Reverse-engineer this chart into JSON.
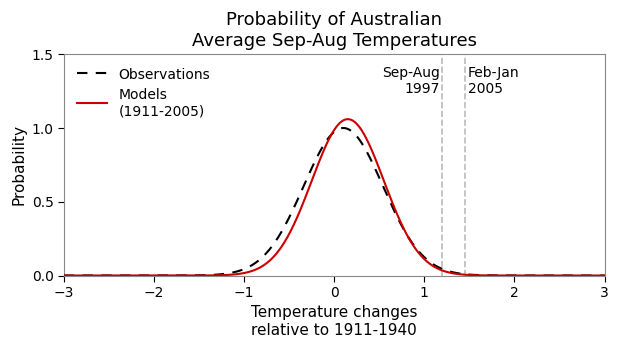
{
  "title_line1": "Probability of Australian",
  "title_line2": "Average Sep-Aug Temperatures",
  "xlabel_line1": "Temperature changes",
  "xlabel_line2": "relative to 1911-1940",
  "ylabel": "Probability",
  "xlim": [
    -3,
    3
  ],
  "ylim": [
    0,
    1.5
  ],
  "xticks": [
    -3,
    -2,
    -1,
    0,
    1,
    2,
    3
  ],
  "yticks": [
    0,
    0.5,
    1,
    1.5
  ],
  "obs_mean": 0.1,
  "obs_std": 0.44,
  "obs_peak": 1.0,
  "model_mean": 0.15,
  "model_std": 0.4,
  "model_peak": 1.06,
  "vline1_x": 1.2,
  "vline2_x": 1.45,
  "vline1_label_line1": "Sep-Aug",
  "vline1_label_line2": "1997",
  "vline2_label_line1": "Feb-Jan",
  "vline2_label_line2": "2005",
  "obs_color": "#000000",
  "model_color": "#cc0000",
  "vline_color": "#bbbbbb",
  "background_color": "#ffffff",
  "legend_obs_label": "Observations",
  "legend_model_label_line1": "Models",
  "legend_model_label_line2": "(1911-2005)",
  "title_fontsize": 13,
  "label_fontsize": 11,
  "tick_fontsize": 10,
  "annotation_fontsize": 10,
  "legend_fontsize": 10
}
